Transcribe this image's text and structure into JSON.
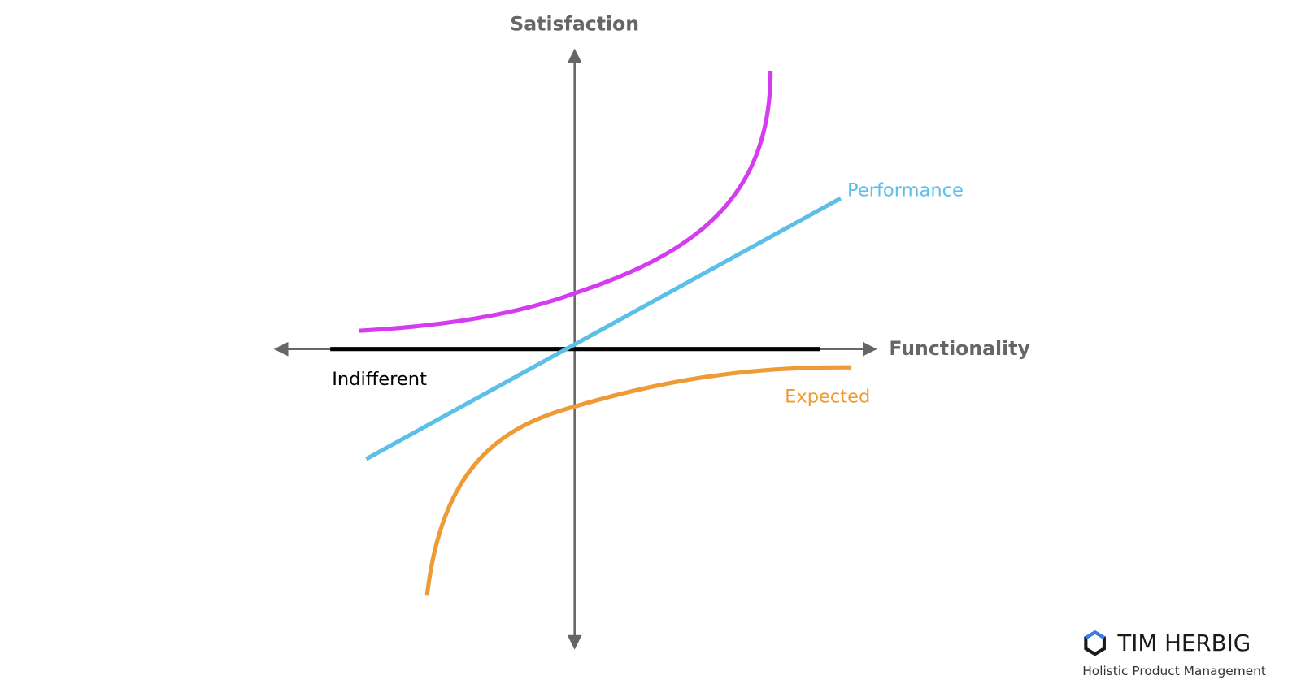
{
  "axes": {
    "y_label": "Satisfaction",
    "x_label": "Functionality"
  },
  "curves": [
    {
      "label": "Performance"
    },
    {
      "label": "Indifferent"
    },
    {
      "label": "Expected"
    }
  ],
  "brand": {
    "name": "TIM HERBIG",
    "tagline": "Holistic Product Management"
  }
}
